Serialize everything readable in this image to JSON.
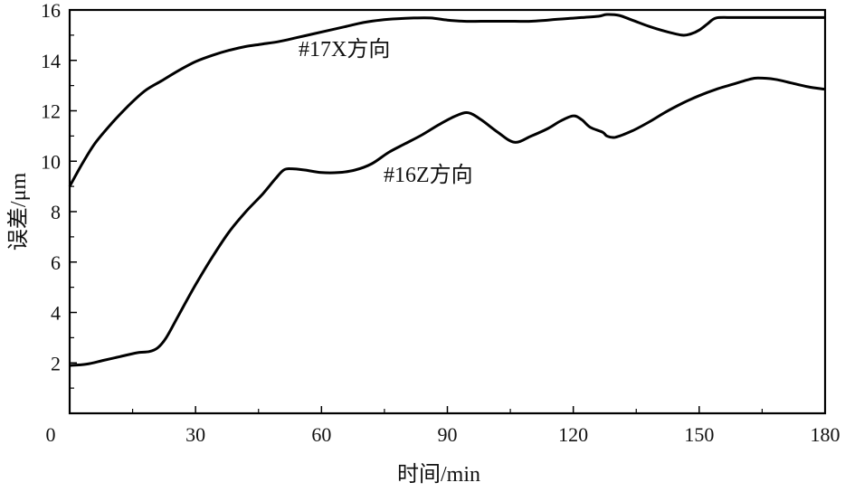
{
  "chart_data": {
    "type": "line",
    "title": "",
    "xlabel": "时间/min",
    "ylabel": "误差/μm",
    "xlim": [
      0,
      180
    ],
    "ylim": [
      0,
      16
    ],
    "xticks": [
      0,
      30,
      60,
      90,
      120,
      150,
      180
    ],
    "yticks": [
      2,
      4,
      6,
      8,
      10,
      12,
      14,
      16
    ],
    "grid": false,
    "legend": "none",
    "annotations": [
      {
        "text": "#17X方向",
        "x": 67,
        "y": 14.1
      },
      {
        "text": "#16Z方向",
        "x": 75,
        "y": 8.9
      }
    ],
    "series": [
      {
        "color": "#000000",
        "x": [
          0,
          3,
          6,
          10,
          14,
          18,
          22,
          26,
          30,
          34,
          38,
          42,
          46,
          50,
          54,
          58,
          62,
          66,
          70,
          74,
          78,
          82,
          86,
          90,
          94,
          98,
          102,
          106,
          110,
          114,
          118,
          122,
          126,
          128,
          131,
          134,
          138,
          142,
          146,
          148,
          150,
          152,
          154,
          158,
          162,
          166,
          170,
          175,
          180
        ],
        "values": [
          9.0,
          9.9,
          10.7,
          11.5,
          12.2,
          12.8,
          13.2,
          13.6,
          13.95,
          14.2,
          14.4,
          14.55,
          14.65,
          14.75,
          14.9,
          15.05,
          15.2,
          15.35,
          15.5,
          15.6,
          15.65,
          15.68,
          15.68,
          15.6,
          15.55,
          15.55,
          15.55,
          15.55,
          15.55,
          15.6,
          15.65,
          15.7,
          15.75,
          15.82,
          15.78,
          15.6,
          15.35,
          15.15,
          15.0,
          15.05,
          15.2,
          15.45,
          15.68,
          15.7,
          15.7,
          15.7,
          15.7,
          15.7,
          15.7
        ]
      },
      {
        "color": "#000000",
        "x": [
          0,
          4,
          8,
          12,
          16,
          19,
          21,
          23,
          26,
          30,
          34,
          38,
          42,
          46,
          49,
          51,
          53,
          56,
          60,
          64,
          68,
          72,
          76,
          80,
          84,
          88,
          92,
          95,
          98,
          102,
          106,
          110,
          114,
          117,
          120,
          122,
          124,
          127,
          128,
          130,
          134,
          138,
          142,
          146,
          150,
          154,
          158,
          162,
          164,
          168,
          172,
          176,
          180
        ],
        "values": [
          1.9,
          1.95,
          2.1,
          2.25,
          2.4,
          2.45,
          2.6,
          3.0,
          3.9,
          5.1,
          6.2,
          7.2,
          8.0,
          8.7,
          9.3,
          9.65,
          9.7,
          9.65,
          9.55,
          9.55,
          9.65,
          9.9,
          10.35,
          10.7,
          11.05,
          11.45,
          11.8,
          11.92,
          11.65,
          11.15,
          10.75,
          11.0,
          11.3,
          11.6,
          11.8,
          11.65,
          11.35,
          11.15,
          11.0,
          10.95,
          11.2,
          11.55,
          11.95,
          12.3,
          12.6,
          12.85,
          13.05,
          13.25,
          13.3,
          13.25,
          13.1,
          12.95,
          12.85
        ]
      }
    ]
  }
}
